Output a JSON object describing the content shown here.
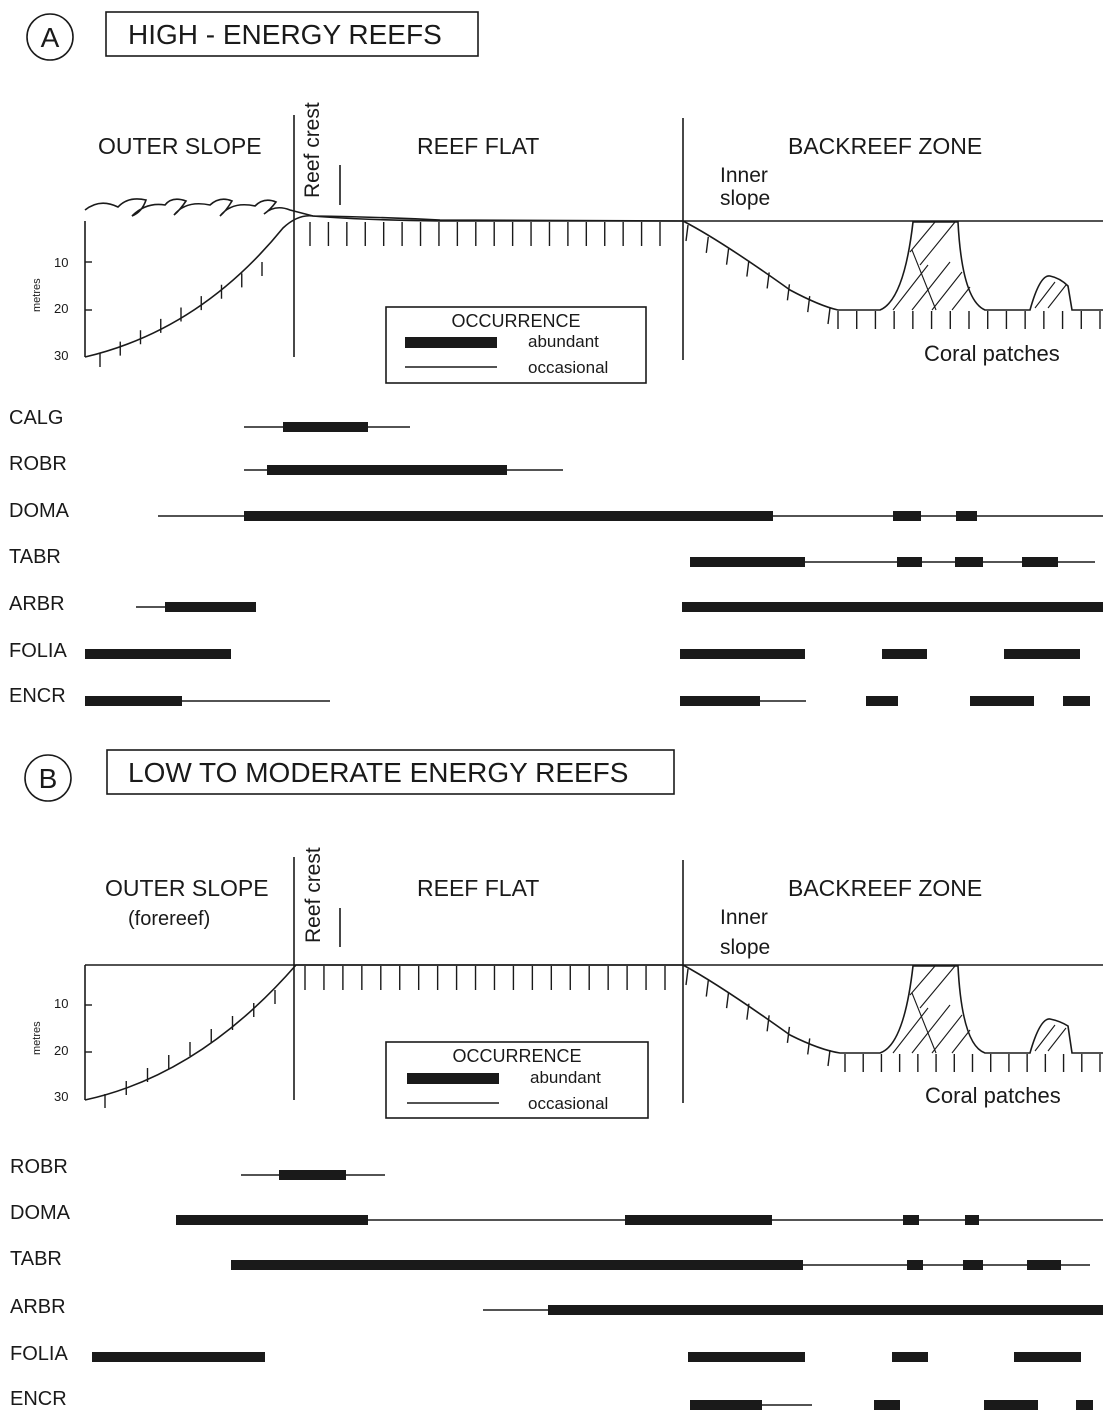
{
  "panels": [
    {
      "letter": "A",
      "title": "HIGH - ENERGY REEFS",
      "zones": {
        "outer_slope": "OUTER SLOPE",
        "outer_slope_sub": "",
        "reef_crest": "Reef crest",
        "reef_flat": "REEF FLAT",
        "backreef": "BACKREEF ZONE",
        "inner_slope_1": "Inner",
        "inner_slope_2": "slope",
        "coral_patches": "Coral patches"
      },
      "depth_axis": {
        "label": "metres",
        "ticks": [
          "10",
          "20",
          "30"
        ]
      },
      "legend": {
        "title": "OCCURRENCE",
        "abundant": "abundant",
        "occasional": "occasional"
      },
      "taxa": [
        {
          "label": "CALG"
        },
        {
          "label": "ROBR"
        },
        {
          "label": "DOMA"
        },
        {
          "label": "TABR"
        },
        {
          "label": "ARBR"
        },
        {
          "label": "FOLIA"
        },
        {
          "label": "ENCR"
        }
      ]
    },
    {
      "letter": "B",
      "title": "LOW TO MODERATE ENERGY REEFS",
      "zones": {
        "outer_slope": "OUTER SLOPE",
        "outer_slope_sub": "(forereef)",
        "reef_crest": "Reef crest",
        "reef_flat": "REEF FLAT",
        "backreef": "BACKREEF ZONE",
        "inner_slope_1": "Inner",
        "inner_slope_2": "slope",
        "coral_patches": "Coral patches"
      },
      "depth_axis": {
        "label": "metres",
        "ticks": [
          "10",
          "20",
          "30"
        ]
      },
      "legend": {
        "title": "OCCURRENCE",
        "abundant": "abundant",
        "occasional": "occasional"
      },
      "taxa": [
        {
          "label": "ROBR"
        },
        {
          "label": "DOMA"
        },
        {
          "label": "TABR"
        },
        {
          "label": "ARBR"
        },
        {
          "label": "FOLIA"
        },
        {
          "label": "ENCR"
        }
      ]
    }
  ]
}
